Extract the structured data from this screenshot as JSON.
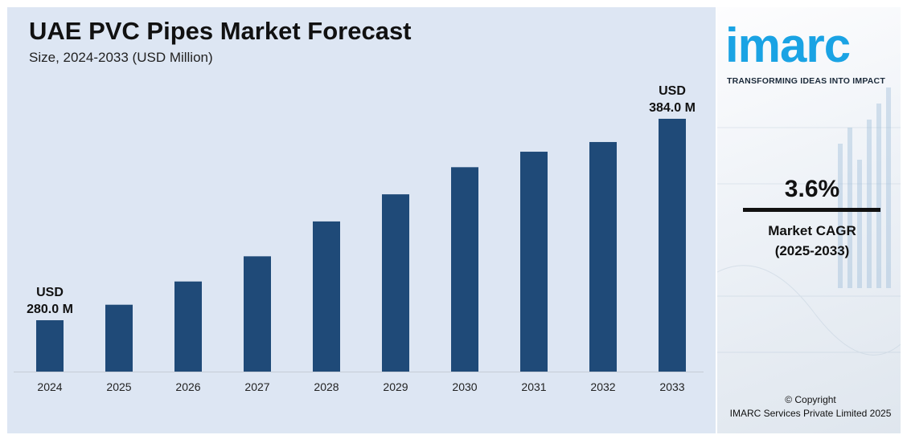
{
  "title": "UAE PVC Pipes Market Forecast",
  "subtitle": "Size, 2024-2033 (USD Million)",
  "chart_data": {
    "type": "bar",
    "title": "UAE PVC Pipes Market Forecast",
    "subtitle": "Size, 2024-2033 (USD Million)",
    "categories": [
      "2024",
      "2025",
      "2026",
      "2027",
      "2028",
      "2029",
      "2030",
      "2031",
      "2032",
      "2033"
    ],
    "values": [
      280.0,
      288.0,
      300.0,
      313.0,
      331.0,
      345.0,
      359.0,
      367.0,
      372.0,
      384.0
    ],
    "data_labels": [
      {
        "index": 0,
        "line1": "USD",
        "line2": "280.0 M"
      },
      {
        "index": 9,
        "line1": "USD",
        "line2": "384.0 M"
      }
    ],
    "grid": false,
    "bar_color": "#1f4a78"
  },
  "sidebar": {
    "logo_text": "imarc",
    "tagline": "TRANSFORMING IDEAS INTO IMPACT",
    "cagr_value": "3.6%",
    "cagr_label_1": "Market CAGR",
    "cagr_label_2": "(2025-2033)",
    "copyright_1": "© Copyright",
    "copyright_2": "IMARC Services Private Limited 2025",
    "logo_color": "#1aa3e4"
  }
}
